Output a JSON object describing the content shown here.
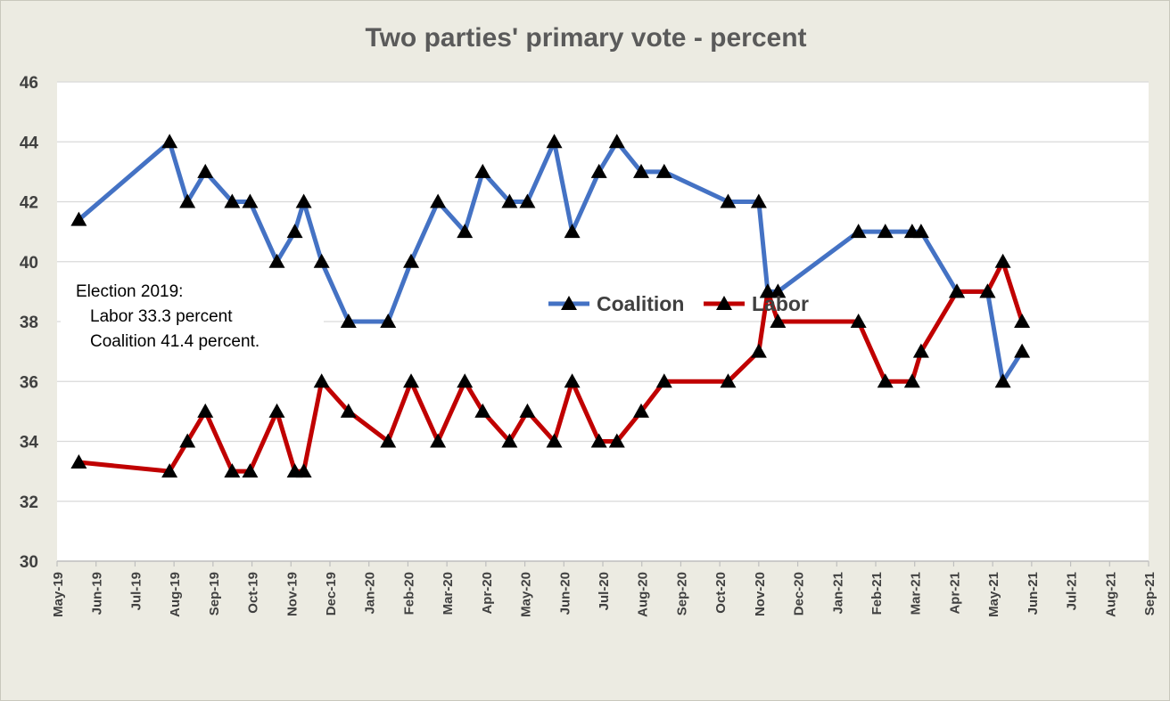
{
  "chart_data": {
    "type": "line",
    "title": "Two parties' primary vote - percent",
    "ylim": [
      30,
      46
    ],
    "yticks": [
      30,
      32,
      34,
      36,
      38,
      40,
      42,
      44,
      46
    ],
    "grid": true,
    "legend_position": "center-right",
    "x_tick_labels": [
      "May-19",
      "Jun-19",
      "Jul-19",
      "Aug-19",
      "Sep-19",
      "Oct-19",
      "Nov-19",
      "Dec-19",
      "Jan-20",
      "Feb-20",
      "Mar-20",
      "Apr-20",
      "May-20",
      "Jun-20",
      "Jul-20",
      "Aug-20",
      "Sep-20",
      "Oct-20",
      "Nov-20",
      "Dec-20",
      "Jan-21",
      "Feb-21",
      "Mar-21",
      "Apr-21",
      "May-21",
      "Jun-21",
      "Jul-21",
      "Aug-21",
      "Sep-21"
    ],
    "x": [
      "2019-05-18",
      "2019-07-28",
      "2019-08-11",
      "2019-08-25",
      "2019-09-15",
      "2019-09-29",
      "2019-10-20",
      "2019-11-03",
      "2019-11-10",
      "2019-11-24",
      "2019-12-15",
      "2020-01-15",
      "2020-02-02",
      "2020-02-23",
      "2020-03-15",
      "2020-03-29",
      "2020-04-19",
      "2020-05-03",
      "2020-05-24",
      "2020-06-07",
      "2020-06-28",
      "2020-07-12",
      "2020-07-31",
      "2020-08-18",
      "2020-09-02",
      "2020-09-27",
      "2020-10-07",
      "2020-10-31",
      "2020-11-07",
      "2020-11-15",
      "2021-01-17",
      "2021-02-07",
      "2021-02-28",
      "2021-03-07",
      "2021-04-04",
      "2021-04-28",
      "2021-05-10",
      "2021-05-25",
      "2021-06-09",
      "2021-06-29",
      "2021-07-20",
      "2021-08-11",
      "2021-09-01",
      "2021-09-12",
      "2021-09-26"
    ],
    "series": [
      {
        "name": "Coalition",
        "color": "#4472c4",
        "values": [
          41.4,
          44,
          42,
          43,
          42,
          42,
          40,
          41,
          42,
          40,
          38,
          38,
          40,
          42,
          41,
          43,
          42,
          42,
          44,
          41,
          43,
          44,
          43,
          43,
          null,
          null,
          42,
          42,
          39,
          39,
          41,
          41,
          41,
          41,
          39,
          39,
          36,
          37,
          null,
          null,
          null,
          null,
          null,
          null,
          null
        ]
      },
      {
        "name": "Labor",
        "color": "#c00000",
        "values": [
          33.3,
          33,
          34,
          35,
          33,
          33,
          35,
          33,
          33,
          36,
          35,
          34,
          36,
          34,
          36,
          35,
          34,
          35,
          34,
          36,
          34,
          34,
          35,
          36,
          null,
          null,
          36,
          37,
          39,
          38,
          38,
          36,
          36,
          37,
          39,
          39,
          40,
          38,
          null,
          null,
          null,
          null,
          null,
          null,
          null
        ]
      }
    ],
    "annotation": {
      "lines": [
        "Election 2019:",
        "Labor 33.3 percent",
        "Coalition  41.4 percent."
      ]
    }
  }
}
